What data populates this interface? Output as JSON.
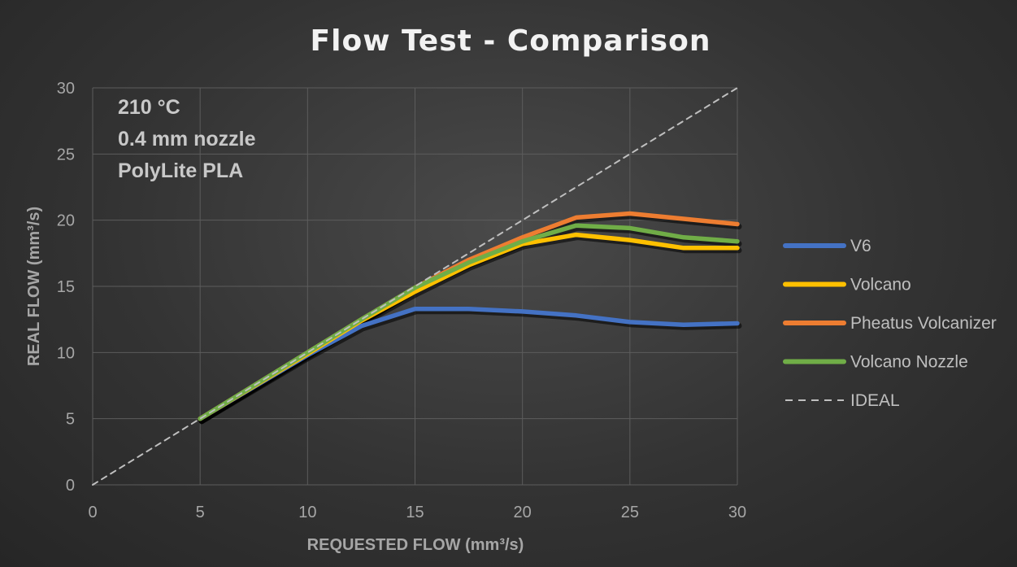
{
  "chart_data": {
    "type": "line",
    "title": "Flow Test - Comparison",
    "xlabel": "REQUESTED FLOW (mm³/s)",
    "ylabel": "REAL FLOW (mm³/s)",
    "xlim": [
      0,
      30
    ],
    "ylim": [
      0,
      30
    ],
    "xticks": [
      "0",
      "5",
      "10",
      "15",
      "20",
      "25",
      "30"
    ],
    "yticks": [
      "0",
      "5",
      "10",
      "15",
      "20",
      "25",
      "30"
    ],
    "grid": true,
    "legend_position": "right",
    "annotations": [
      "210 °C",
      "0.4 mm nozzle",
      "PolyLite PLA"
    ],
    "series": [
      {
        "name": "V6",
        "color": "#4472c4",
        "dash": false,
        "points": [
          [
            5,
            5
          ],
          [
            10,
            9.8
          ],
          [
            12.5,
            12.0
          ],
          [
            15,
            13.3
          ],
          [
            17.5,
            13.3
          ],
          [
            20,
            13.1
          ],
          [
            22.5,
            12.8
          ],
          [
            25,
            12.3
          ],
          [
            27.5,
            12.1
          ],
          [
            30,
            12.2
          ]
        ]
      },
      {
        "name": "Volcano",
        "color": "#ffc000",
        "dash": false,
        "points": [
          [
            5,
            5
          ],
          [
            10,
            9.9
          ],
          [
            12.5,
            12.4
          ],
          [
            15,
            14.6
          ],
          [
            17.5,
            16.6
          ],
          [
            20,
            18.2
          ],
          [
            22.5,
            18.9
          ],
          [
            25,
            18.5
          ],
          [
            27.5,
            17.9
          ],
          [
            30,
            17.9
          ]
        ]
      },
      {
        "name": "Pheatus Volcanizer",
        "color": "#ed7d31",
        "dash": false,
        "points": [
          [
            5,
            5
          ],
          [
            10,
            10
          ],
          [
            12.5,
            12.5
          ],
          [
            15,
            14.9
          ],
          [
            17.5,
            17.0
          ],
          [
            20,
            18.7
          ],
          [
            22.5,
            20.2
          ],
          [
            25,
            20.5
          ],
          [
            27.5,
            20.1
          ],
          [
            30,
            19.7
          ]
        ]
      },
      {
        "name": "Volcano Nozzle",
        "color": "#70ad47",
        "dash": false,
        "points": [
          [
            5,
            5
          ],
          [
            10,
            10
          ],
          [
            12.5,
            12.5
          ],
          [
            15,
            14.9
          ],
          [
            17.5,
            16.8
          ],
          [
            20,
            18.4
          ],
          [
            22.5,
            19.6
          ],
          [
            25,
            19.4
          ],
          [
            27.5,
            18.7
          ],
          [
            30,
            18.4
          ]
        ]
      },
      {
        "name": "IDEAL",
        "color": "#bfbfbf",
        "dash": true,
        "points": [
          [
            0,
            0
          ],
          [
            30,
            30
          ]
        ]
      }
    ]
  }
}
